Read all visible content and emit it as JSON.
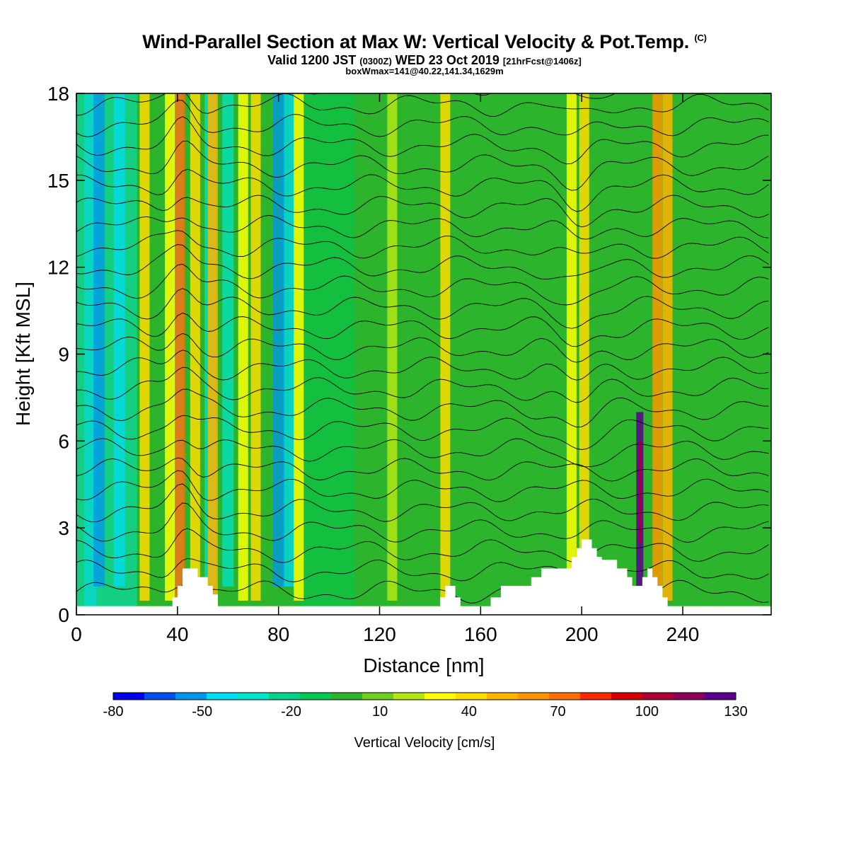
{
  "header": {
    "title": "Wind-Parallel Section at Max W: Vertical Velocity & Pot.Temp.",
    "copyright": "(C)",
    "valid_prefix": "Valid 1200 JST",
    "valid_z": "(0300Z)",
    "valid_date": "WED 23 Oct 2019",
    "valid_fcst": "[21hrFcst@1406z]",
    "boxwmax": "boxWmax=141@40.22,141.34,1629m"
  },
  "chart_data": {
    "type": "heatmap",
    "xlabel": "Distance [nm]",
    "ylabel": "Height [Kft MSL]",
    "xlim": [
      0,
      275
    ],
    "ylim": [
      0,
      18
    ],
    "xticks": [
      0,
      40,
      80,
      120,
      160,
      200,
      240
    ],
    "yticks": [
      0,
      3,
      6,
      9,
      12,
      15,
      18
    ],
    "colorbar": {
      "label": "Vertical Velocity [cm/s]",
      "tick_values": [
        -80,
        -50,
        -20,
        10,
        40,
        70,
        100,
        130
      ],
      "colors": [
        "#0000f0",
        "#0050f0",
        "#0096f0",
        "#00dcf0",
        "#00e6c8",
        "#00d28c",
        "#00c850",
        "#2db42d",
        "#6ece1e",
        "#b4e614",
        "#ffff00",
        "#ffdc00",
        "#ffb400",
        "#ff9600",
        "#ff6e00",
        "#ff2800",
        "#d20000",
        "#aa0032",
        "#8c005a",
        "#5a008c"
      ]
    },
    "terrain": {
      "x": [
        0,
        4,
        8,
        12,
        16,
        20,
        24,
        28,
        32,
        36,
        38,
        40,
        42,
        44,
        46,
        48,
        50,
        52,
        54,
        56,
        60,
        64,
        70,
        80,
        90,
        100,
        110,
        120,
        130,
        140,
        144,
        146,
        148,
        150,
        152,
        154,
        160,
        164,
        168,
        172,
        176,
        180,
        184,
        186,
        188,
        190,
        192,
        194,
        196,
        198,
        200,
        202,
        204,
        206,
        208,
        210,
        212,
        214,
        216,
        218,
        220,
        222,
        224,
        226,
        228,
        230,
        232,
        234,
        236,
        240,
        250,
        260,
        270,
        275
      ],
      "y": [
        0.3,
        0.3,
        0.3,
        0.3,
        0.3,
        0.3,
        0.3,
        0.3,
        0.3,
        0.3,
        0.6,
        1.0,
        1.6,
        1.6,
        1.6,
        1.3,
        1.3,
        1.0,
        0.7,
        0.3,
        0.3,
        0.3,
        0.3,
        0.3,
        0.3,
        0.3,
        0.3,
        0.3,
        0.3,
        0.3,
        0.6,
        1.0,
        1.0,
        0.6,
        0.3,
        0.3,
        0.3,
        0.6,
        1.0,
        1.0,
        1.0,
        1.3,
        1.6,
        1.6,
        1.6,
        1.6,
        1.6,
        1.6,
        2.0,
        2.3,
        2.6,
        2.6,
        2.3,
        2.0,
        1.9,
        1.9,
        1.9,
        1.6,
        1.6,
        1.3,
        1.0,
        1.0,
        1.3,
        1.6,
        1.3,
        1.0,
        0.6,
        0.3,
        0.3,
        0.3,
        0.3,
        0.3,
        0.3,
        0.3
      ]
    },
    "updraft_columns": [
      {
        "x": 27,
        "w": 40
      },
      {
        "x": 37,
        "w": 30
      },
      {
        "x": 41,
        "w": 70
      },
      {
        "x": 47,
        "w": 40
      },
      {
        "x": 54,
        "w": 55
      },
      {
        "x": 66,
        "w": 30
      },
      {
        "x": 71,
        "w": 45
      },
      {
        "x": 88,
        "w": 30
      },
      {
        "x": 125,
        "w": 20
      },
      {
        "x": 146,
        "w": 40
      },
      {
        "x": 196,
        "w": 30
      },
      {
        "x": 201,
        "w": 40
      },
      {
        "x": 223,
        "w": 141
      },
      {
        "x": 230,
        "w": 60
      },
      {
        "x": 234,
        "w": 55
      }
    ],
    "downdraft_columns": [
      {
        "x": 9,
        "w": -55
      },
      {
        "x": 17,
        "w": -40
      },
      {
        "x": 40,
        "w": -45
      },
      {
        "x": 53,
        "w": -35
      },
      {
        "x": 60,
        "w": -30
      },
      {
        "x": 84,
        "w": -45
      },
      {
        "x": 80,
        "w": -55
      }
    ],
    "theta_isentropes": {
      "count": 26,
      "note": ""
    }
  }
}
